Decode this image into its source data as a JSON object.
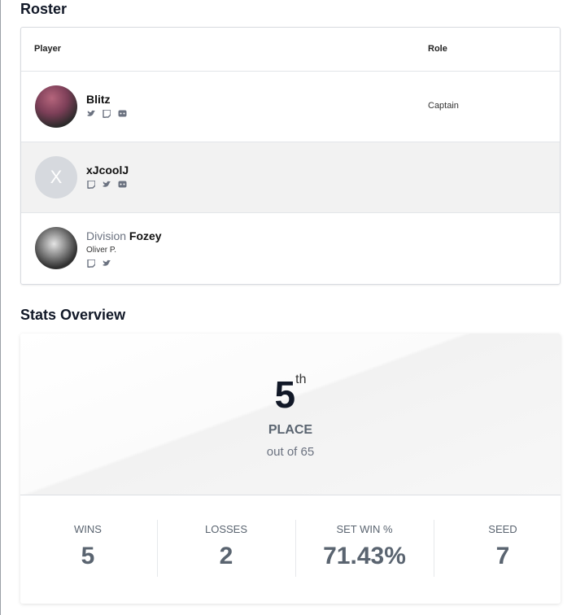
{
  "roster": {
    "title": "Roster",
    "headers": [
      "Player",
      "Role"
    ],
    "players": [
      {
        "name": "Blitz",
        "role": "Captain"
      },
      {
        "avatar_letter": "X",
        "name": "xJcoolJ"
      },
      {
        "team": "Division",
        "name": "Fozey",
        "real_name": "Oliver P."
      }
    ]
  },
  "stats": {
    "title": "Stats Overview",
    "place": "5",
    "place_suffix": "th",
    "place_label": "PLACE",
    "out_of": "out of 65",
    "metrics": [
      {
        "label": "WINS",
        "value": "5"
      },
      {
        "label": "LOSSES",
        "value": "2"
      },
      {
        "label": "SET WIN %",
        "value": "71.43%"
      },
      {
        "label": "SEED",
        "value": "7"
      }
    ]
  }
}
